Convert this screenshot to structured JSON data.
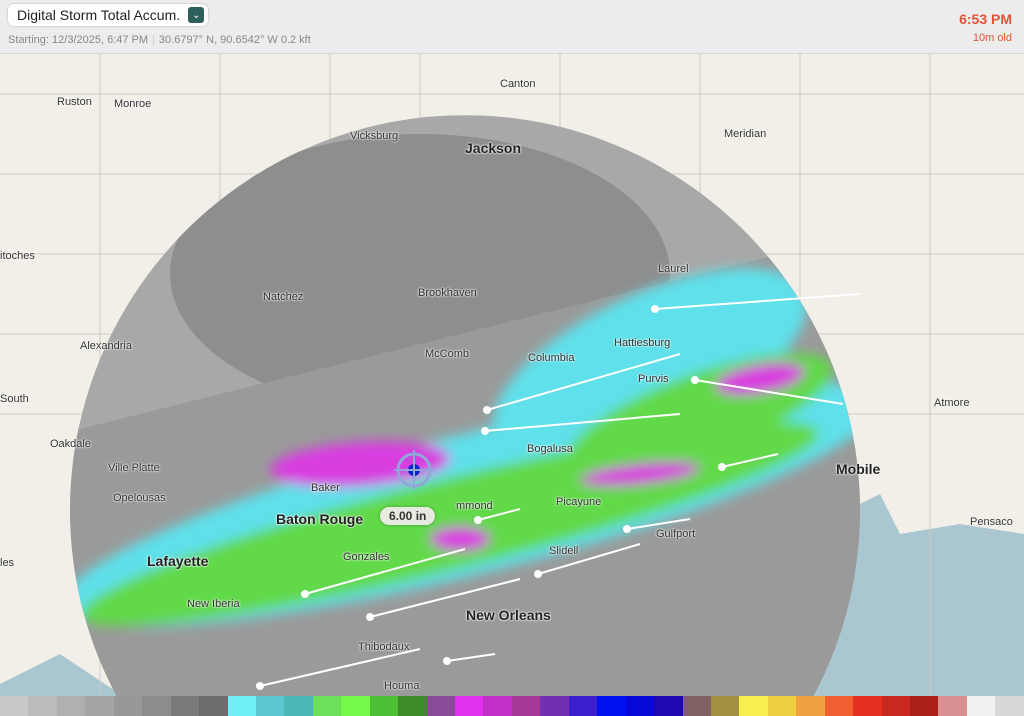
{
  "header": {
    "product": "Digital Storm Total Accum.",
    "starting": "Starting: 12/3/2025, 6:47 PM",
    "location": "30.6797° N, 90.6542° W 0.2 kft",
    "time": "6:53 PM",
    "age": "10m old",
    "dropdown_icon": "chevron-down-icon"
  },
  "cursor": {
    "value": "6.00 in",
    "icon": "crosshair-icon"
  },
  "cities": [
    {
      "name": "Ruston",
      "major": false
    },
    {
      "name": "Monroe",
      "major": false
    },
    {
      "name": "Canton",
      "major": false
    },
    {
      "name": "Vicksburg",
      "major": false
    },
    {
      "name": "Jackson",
      "major": true
    },
    {
      "name": "Meridian",
      "major": false
    },
    {
      "name": "itoches",
      "major": false
    },
    {
      "name": "Natchez",
      "major": false
    },
    {
      "name": "Brookhaven",
      "major": false
    },
    {
      "name": "Laurel",
      "major": false
    },
    {
      "name": "Alexandria",
      "major": false
    },
    {
      "name": "McComb",
      "major": false
    },
    {
      "name": "Columbia",
      "major": false
    },
    {
      "name": "Hattiesburg",
      "major": false
    },
    {
      "name": "Purvis",
      "major": false
    },
    {
      "name": "South",
      "major": false
    },
    {
      "name": "Atmore",
      "major": false
    },
    {
      "name": "Oakdale",
      "major": false
    },
    {
      "name": "Bogalusa",
      "major": false
    },
    {
      "name": "Ville Platte",
      "major": false
    },
    {
      "name": "Mobile",
      "major": true
    },
    {
      "name": "Opelousas",
      "major": false
    },
    {
      "name": "Baker",
      "major": false
    },
    {
      "name": "Baton Rouge",
      "major": true
    },
    {
      "name": "mmond",
      "major": false
    },
    {
      "name": "Picayune",
      "major": false
    },
    {
      "name": "Pensaco",
      "major": false
    },
    {
      "name": "Gulfport",
      "major": false
    },
    {
      "name": "Gonzales",
      "major": false
    },
    {
      "name": "Slidell",
      "major": false
    },
    {
      "name": "Lafayette",
      "major": true
    },
    {
      "name": "les",
      "major": false
    },
    {
      "name": "New Iberia",
      "major": false
    },
    {
      "name": "New Orleans",
      "major": true
    },
    {
      "name": "Thibodaux",
      "major": false
    },
    {
      "name": "Houma",
      "major": false
    }
  ],
  "colors": {
    "accent": "#e0533a",
    "land": "#f2efe9",
    "water": "#a9c6d1",
    "radar_cyan": "#5fe0ea",
    "radar_green": "#62d94a",
    "radar_magenta": "#d83ee0"
  },
  "color_scale": [
    "#c8c8c8",
    "#bcbcbc",
    "#b0b0b0",
    "#a4a4a4",
    "#989898",
    "#8c8c8c",
    "#7a7a7a",
    "#6c6c6c",
    "#6ef0f6",
    "#5cc8d0",
    "#4ab8b8",
    "#6ce05a",
    "#74f84c",
    "#4cc034",
    "#3c8c2c",
    "#8a4a9a",
    "#e030f0",
    "#c030c8",
    "#a83898",
    "#7030b0",
    "#3c20d0",
    "#0010f0",
    "#0808d8",
    "#2008b0",
    "#806060",
    "#a09040",
    "#f8f050",
    "#f0d040",
    "#f0a040",
    "#f06030",
    "#e83020",
    "#c82820",
    "#a82018",
    "#d89090",
    "#f0f0f0",
    "#d8d8d8"
  ]
}
